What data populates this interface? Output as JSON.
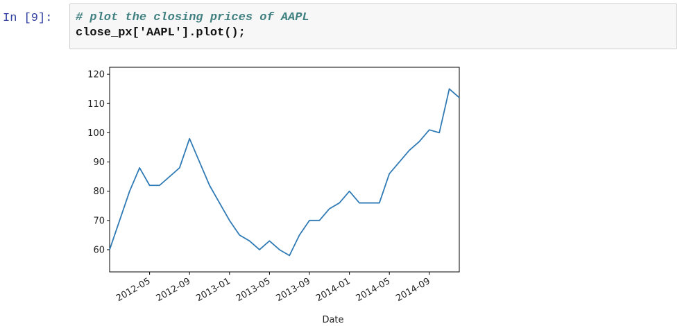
{
  "cell": {
    "prompt": "In [9]:",
    "lines": [
      "# plot the closing prices of AAPL",
      "close_px['AAPL'].plot();"
    ]
  },
  "chart_data": {
    "type": "line",
    "xlabel": "Date",
    "x": [
      "2012-01",
      "2012-02",
      "2012-03",
      "2012-04",
      "2012-05",
      "2012-06",
      "2012-07",
      "2012-08",
      "2012-09",
      "2012-10",
      "2012-11",
      "2012-12",
      "2013-01",
      "2013-02",
      "2013-03",
      "2013-04",
      "2013-05",
      "2013-06",
      "2013-07",
      "2013-08",
      "2013-09",
      "2013-10",
      "2013-11",
      "2013-12",
      "2014-01",
      "2014-02",
      "2014-03",
      "2014-04",
      "2014-05",
      "2014-06",
      "2014-07",
      "2014-08",
      "2014-09",
      "2014-10",
      "2014-11",
      "2014-12"
    ],
    "series": [
      {
        "name": "AAPL",
        "color": "#2f7ab5",
        "values": [
          60,
          70,
          80,
          88,
          82,
          82,
          85,
          88,
          98,
          90,
          82,
          76,
          70,
          65,
          63,
          60,
          63,
          60,
          58,
          65,
          70,
          70,
          74,
          76,
          80,
          76,
          76,
          76,
          86,
          90,
          94,
          97,
          101,
          100,
          115,
          112
        ]
      }
    ],
    "xlim": [
      "2012-01",
      "2014-12"
    ],
    "xticks": [
      "2012-05",
      "2012-09",
      "2013-01",
      "2013-05",
      "2013-09",
      "2014-01",
      "2014-05",
      "2014-09"
    ],
    "ylim": [
      52.4,
      122.4
    ],
    "yticks": [
      60,
      70,
      80,
      90,
      100,
      110,
      120
    ],
    "grid": false
  }
}
